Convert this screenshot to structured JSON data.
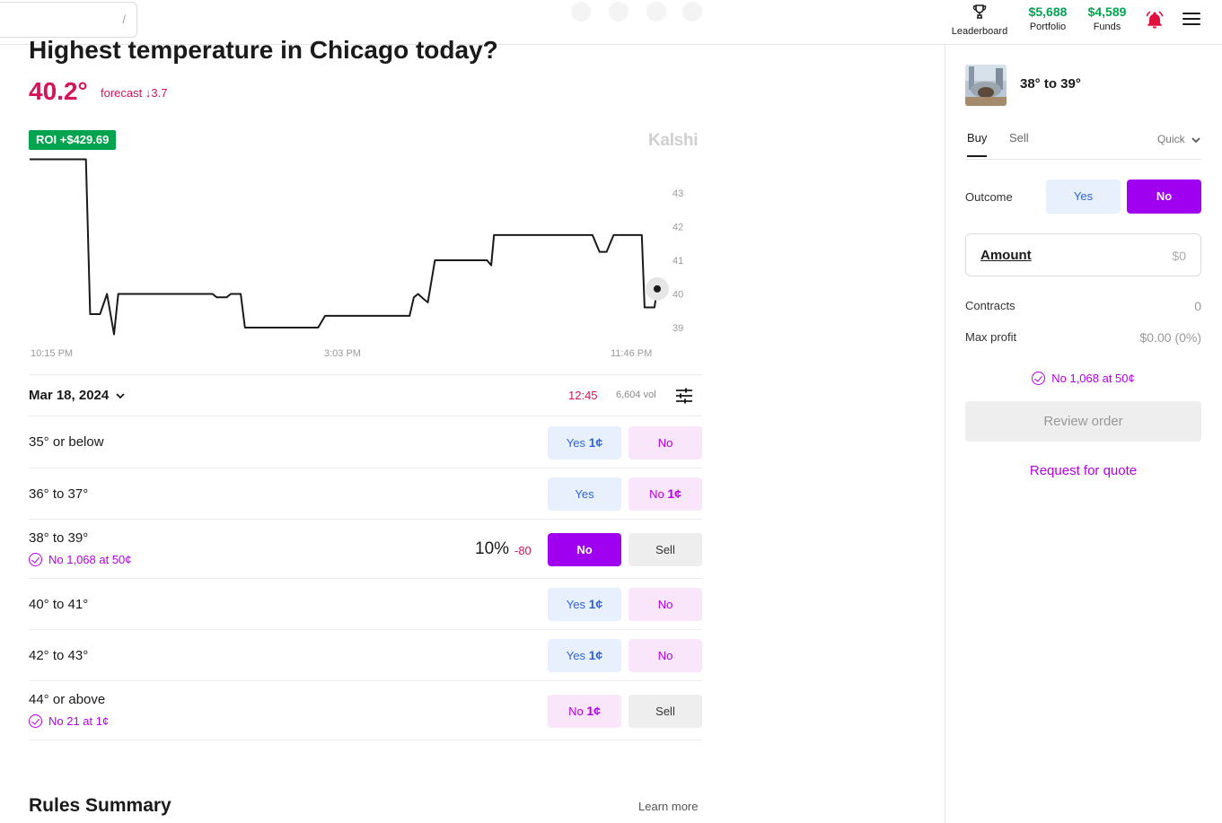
{
  "header": {
    "search_shortcut": "/",
    "leaderboard_label": "Leaderboard",
    "portfolio_value": "$5,688",
    "portfolio_label": "Portfolio",
    "funds_value": "$4,589",
    "funds_label": "Funds",
    "accent_green": "#00a34e",
    "bell_color": "#e0103e"
  },
  "market": {
    "title": "Highest temperature in Chicago today?",
    "current_temp": "40.2°",
    "forecast_text": "forecast ↓3.7",
    "roi_badge": "ROI +$429.69",
    "brand": "Kalshi"
  },
  "chart_data": {
    "type": "line",
    "title": "",
    "xlabel": "",
    "ylabel": "",
    "x_tick_labels": [
      "10:15 PM",
      "3:03 PM",
      "11:46 PM"
    ],
    "y_tick_labels": [
      "43",
      "42",
      "41",
      "40",
      "39"
    ],
    "ylim": [
      38.6,
      44.2
    ],
    "grid": false,
    "series": [
      {
        "values": [
          [
            0,
            44.0
          ],
          [
            0.4,
            44.0
          ],
          [
            0.43,
            39.4
          ],
          [
            0.5,
            39.4
          ],
          [
            0.55,
            40.0
          ],
          [
            0.6,
            38.8
          ],
          [
            0.63,
            40.0
          ],
          [
            1.3,
            40.0
          ],
          [
            1.33,
            39.9
          ],
          [
            1.4,
            39.9
          ],
          [
            1.43,
            40.0
          ],
          [
            1.5,
            40.0
          ],
          [
            1.53,
            39.0
          ],
          [
            2.05,
            39.0
          ],
          [
            2.1,
            39.35
          ],
          [
            2.7,
            39.35
          ],
          [
            2.73,
            39.9
          ],
          [
            2.76,
            40.0
          ],
          [
            2.8,
            39.85
          ],
          [
            2.83,
            39.75
          ],
          [
            2.88,
            41.0
          ],
          [
            3.25,
            41.0
          ],
          [
            3.28,
            40.85
          ],
          [
            3.3,
            41.75
          ],
          [
            4.0,
            41.75
          ],
          [
            4.05,
            41.25
          ],
          [
            4.1,
            41.25
          ],
          [
            4.15,
            41.75
          ],
          [
            4.35,
            41.75
          ],
          [
            4.37,
            39.6
          ],
          [
            4.44,
            39.6
          ],
          [
            4.46,
            40.15
          ]
        ]
      }
    ]
  },
  "date_row": {
    "date": "Mar 18, 2024",
    "countdown": "12:45",
    "volume": "6,604 vol"
  },
  "markets": [
    {
      "name": "35° or below",
      "position": "",
      "pct": "",
      "pct_change": "",
      "btn1": {
        "label": "Yes ",
        "price": "1¢",
        "kind": "yes"
      },
      "btn2": {
        "label": "No",
        "price": "",
        "kind": "no"
      }
    },
    {
      "name": "36° to 37°",
      "position": "",
      "pct": "",
      "pct_change": "",
      "btn1": {
        "label": "Yes",
        "price": "",
        "kind": "yes"
      },
      "btn2": {
        "label": "No ",
        "price": "1¢",
        "kind": "no"
      }
    },
    {
      "name": "38° to 39°",
      "position": "No 1,068 at 50¢",
      "pct": "10%",
      "pct_change": "-80",
      "btn1": {
        "label": "No",
        "price": "",
        "kind": "nosolid"
      },
      "btn2": {
        "label": "Sell",
        "price": "",
        "kind": "sell"
      }
    },
    {
      "name": "40° to 41°",
      "position": "",
      "pct": "",
      "pct_change": "",
      "btn1": {
        "label": "Yes ",
        "price": "1¢",
        "kind": "yes"
      },
      "btn2": {
        "label": "No",
        "price": "",
        "kind": "no"
      }
    },
    {
      "name": "42° to 43°",
      "position": "",
      "pct": "",
      "pct_change": "",
      "btn1": {
        "label": "Yes ",
        "price": "1¢",
        "kind": "yes"
      },
      "btn2": {
        "label": "No",
        "price": "",
        "kind": "no"
      }
    },
    {
      "name": "44° or above",
      "position": "No 21 at 1¢",
      "pct": "",
      "pct_change": "",
      "btn1": {
        "label": "No ",
        "price": "1¢",
        "kind": "no"
      },
      "btn2": {
        "label": "Sell",
        "price": "",
        "kind": "sell"
      }
    }
  ],
  "rules": {
    "title": "Rules Summary",
    "learn_more": "Learn more"
  },
  "panel": {
    "market_name": "38° to 39°",
    "tab_buy": "Buy",
    "tab_sell": "Sell",
    "mode": "Quick",
    "outcome_label": "Outcome",
    "outcome_yes": "Yes",
    "outcome_no": "No",
    "amount_label": "Amount",
    "amount_value": "$0",
    "contracts_label": "Contracts",
    "contracts_value": "0",
    "max_profit_label": "Max profit",
    "max_profit_value": "$0.00 (0%)",
    "position": "No 1,068 at 50¢",
    "review_button": "Review order",
    "rfq": "Request for quote",
    "accent_purple": "#a000f0"
  }
}
